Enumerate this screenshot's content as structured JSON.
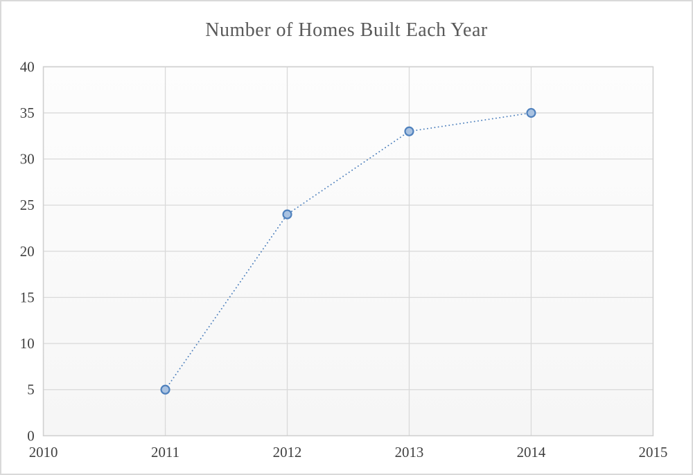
{
  "chart_data": {
    "type": "line",
    "title": "Number of Homes Built Each Year",
    "x": [
      2011,
      2012,
      2013,
      2014
    ],
    "values": [
      5,
      24,
      33,
      35
    ],
    "xlabel": "",
    "ylabel": "",
    "xlim": [
      2010,
      2015
    ],
    "ylim": [
      0,
      40
    ],
    "x_ticks": [
      2010,
      2011,
      2012,
      2013,
      2014,
      2015
    ],
    "y_ticks": [
      0,
      5,
      10,
      15,
      20,
      25,
      30,
      35,
      40
    ],
    "grid": true,
    "legend": "none",
    "line_style": "dotted",
    "marker": "circle",
    "colors": {
      "line": "#4f81bd",
      "marker_fill": "#a9c2e1",
      "marker_border": "#4f81bd",
      "gridline": "#d9d9d9",
      "plot_border": "#d0d0d0",
      "plot_bg_top": "#fdfdfd",
      "plot_bg_bottom": "#f6f6f6",
      "title": "#595959",
      "tick_labels": "#3f3f3f",
      "outer_border": "#d9d9d9"
    }
  }
}
